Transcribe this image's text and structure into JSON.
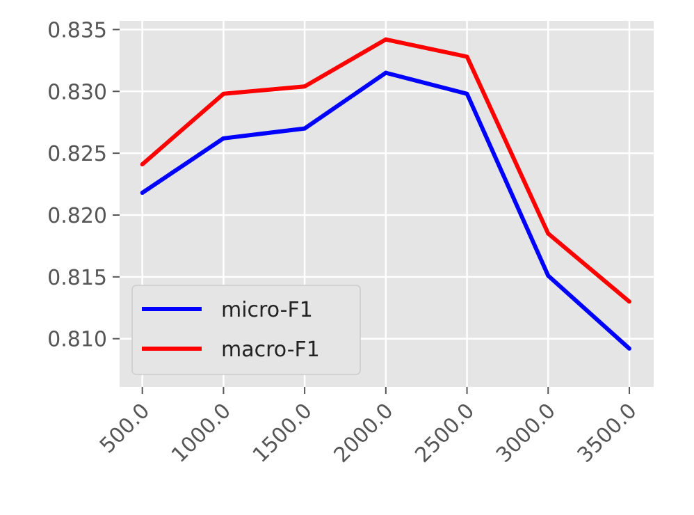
{
  "chart_data": {
    "type": "line",
    "title": "",
    "xlabel": "",
    "ylabel": "",
    "x": [
      500.0,
      1000.0,
      1500.0,
      2000.0,
      2500.0,
      3000.0,
      3500.0
    ],
    "x_tick_labels": [
      "500.0",
      "1000.0",
      "1500.0",
      "2000.0",
      "2500.0",
      "3000.0",
      "3500.0"
    ],
    "y_ticks": [
      0.81,
      0.815,
      0.82,
      0.825,
      0.83,
      0.835
    ],
    "y_tick_labels": [
      "0.810",
      "0.815",
      "0.820",
      "0.825",
      "0.830",
      "0.835"
    ],
    "xlim": [
      360,
      3650
    ],
    "ylim": [
      0.8061,
      0.8357
    ],
    "grid": true,
    "legend_position": "lower-left",
    "series": [
      {
        "name": "micro-F1",
        "color": "#0000ff",
        "values": [
          0.8218,
          0.8262,
          0.827,
          0.8315,
          0.8298,
          0.8151,
          0.8092
        ]
      },
      {
        "name": "macro-F1",
        "color": "#ff0000",
        "values": [
          0.8241,
          0.8298,
          0.8304,
          0.8342,
          0.8328,
          0.8185,
          0.813
        ]
      }
    ]
  }
}
